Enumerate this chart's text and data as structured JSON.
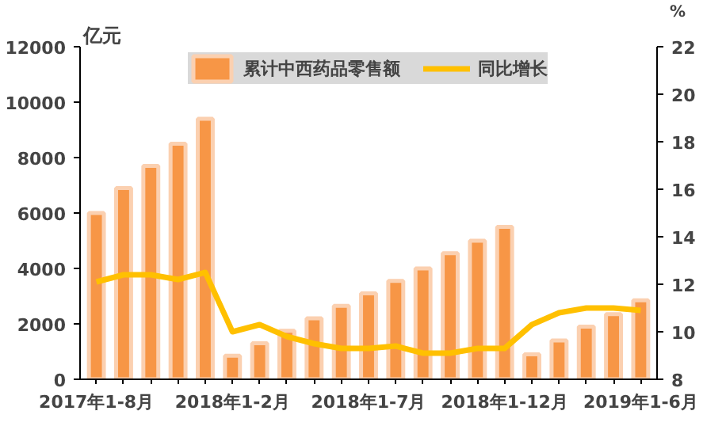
{
  "chart_data": {
    "type": "bar",
    "ylabel": "亿元",
    "y2label": "%",
    "categories": [
      "2017年1-8月",
      null,
      null,
      null,
      null,
      "2018年1-2月",
      null,
      null,
      null,
      null,
      "2018年1-7月",
      null,
      null,
      null,
      null,
      "2018年1-12月",
      null,
      null,
      null,
      null,
      "2019年1-6月"
    ],
    "series": [
      {
        "name": "累计中西药品零售额",
        "type": "bar",
        "color": "#f79646",
        "values": [
          6000,
          6900,
          7700,
          8500,
          9400,
          850,
          1300,
          1750,
          2200,
          2650,
          3100,
          3550,
          4000,
          4550,
          5000,
          5500,
          900,
          1400,
          1900,
          2350,
          2850
        ]
      },
      {
        "name": "同比增长",
        "type": "line",
        "axis": "y2",
        "color": "#ffc000",
        "values": [
          12.1,
          12.4,
          12.4,
          12.2,
          12.5,
          10.0,
          10.3,
          9.8,
          9.5,
          9.3,
          9.3,
          9.4,
          9.1,
          9.1,
          9.3,
          9.3,
          10.3,
          10.8,
          11.0,
          11.0,
          10.9
        ]
      }
    ],
    "ylim": [
      0,
      12000
    ],
    "yticks": [
      0,
      2000,
      4000,
      6000,
      8000,
      10000,
      12000
    ],
    "y2lim": [
      8,
      22
    ],
    "y2ticks": [
      8,
      10,
      12,
      14,
      16,
      18,
      20,
      22
    ],
    "grid": false,
    "legend": "top",
    "line_style": "solid",
    "marker": "none"
  }
}
